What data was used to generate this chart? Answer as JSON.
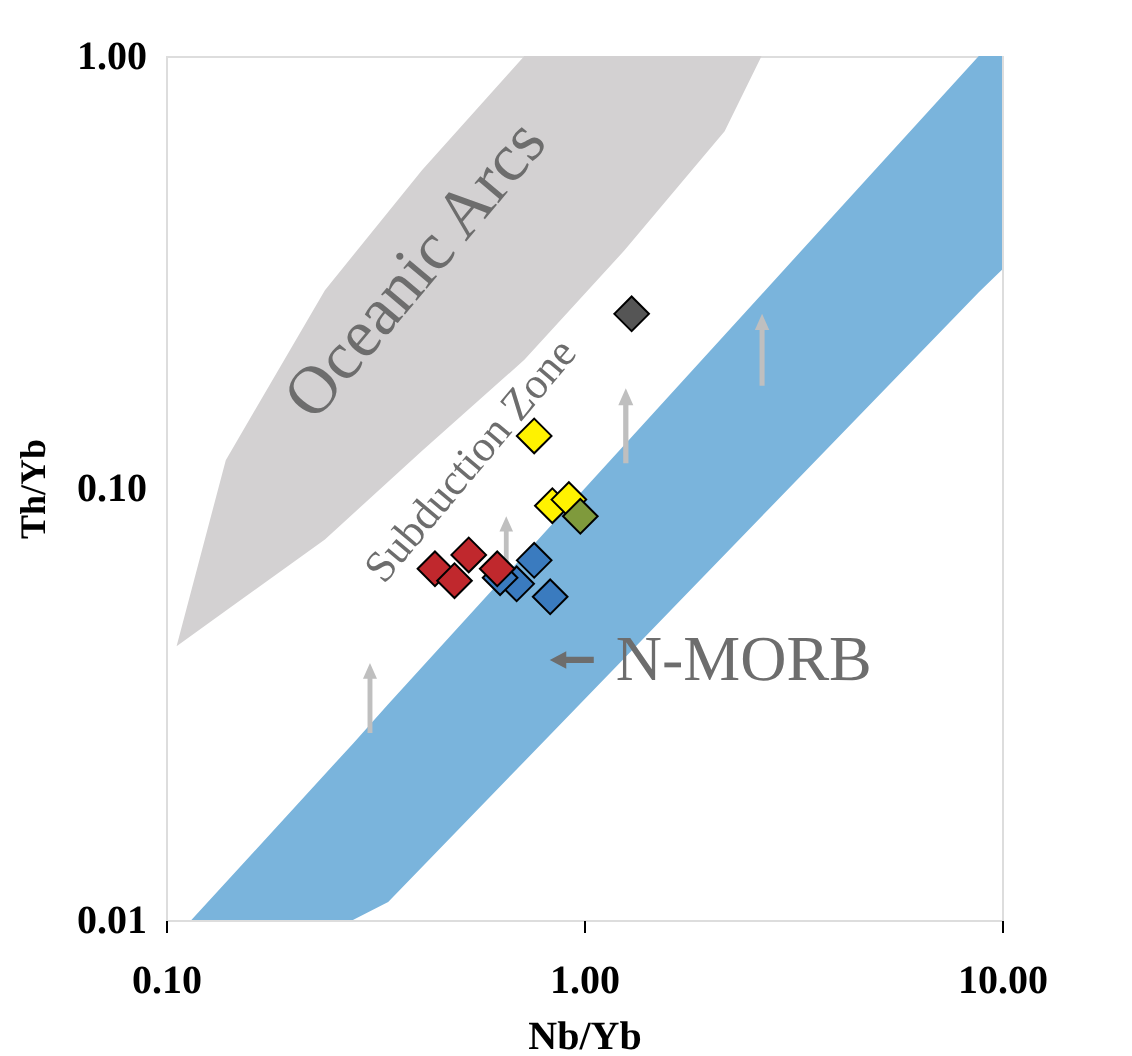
{
  "chart_data": {
    "type": "scatter",
    "xlabel": "Nb/Yb",
    "ylabel": "Th/Yb",
    "log": "xy",
    "grid": false,
    "marker": "diamond",
    "xlim": [
      0.1,
      10
    ],
    "ylim": [
      0.01,
      1
    ],
    "xticks": [
      {
        "value": 0.1,
        "label": "0.10"
      },
      {
        "value": 1,
        "label": "1.00"
      },
      {
        "value": 10,
        "label": "10.00"
      }
    ],
    "yticks": [
      {
        "value": 0.01,
        "label": "0.01"
      },
      {
        "value": 0.1,
        "label": "0.10"
      },
      {
        "value": 1,
        "label": "1.00"
      }
    ],
    "annotations": [
      "Oceanic Arcs",
      "Subduction Zone",
      "N-MORB"
    ],
    "series": [
      {
        "type": "area",
        "color": "#7ab4dc",
        "x": [
          0.115,
          0.28,
          0.34,
          8.8,
          10
        ],
        "values": [
          null,
          null,
          null,
          null,
          null
        ],
        "lower": [
          0.01,
          0.01,
          0.011,
          0.284,
          0.32
        ],
        "upper": [
          0.01,
          0.0256,
          0.0316,
          1.0,
          1.0
        ]
      },
      {
        "type": "area",
        "color": "#d3d1d2",
        "x": [
          0.106,
          0.139,
          0.24,
          0.41,
          0.72,
          1.25,
          2.17,
          2.66
        ],
        "values": [
          null,
          null,
          null,
          null,
          null,
          null,
          null,
          null
        ],
        "lower": [
          0.043,
          0.052,
          0.076,
          0.122,
          0.198,
          0.355,
          0.67,
          1.0
        ],
        "upper": [
          0.043,
          0.116,
          0.287,
          0.545,
          1.0,
          1.0,
          1.0,
          1.0
        ]
      },
      {
        "color": "#3a7bbf",
        "x": [
          0.76,
          0.69,
          0.83,
          0.63
        ],
        "values": [
          0.068,
          0.06,
          0.056,
          0.062
        ]
      },
      {
        "color": "#c0282d",
        "x": [
          0.44,
          0.53,
          0.62,
          0.49
        ],
        "values": [
          0.065,
          0.07,
          0.065,
          0.061
        ]
      },
      {
        "color": "#fff200",
        "x": [
          0.76,
          0.84,
          0.92
        ],
        "values": [
          0.132,
          0.091,
          0.094
        ]
      },
      {
        "color": "#7f9a3c",
        "x": [
          0.98
        ],
        "values": [
          0.086
        ]
      },
      {
        "color": "#555555",
        "x": [
          1.3
        ],
        "values": [
          0.253
        ]
      }
    ]
  }
}
